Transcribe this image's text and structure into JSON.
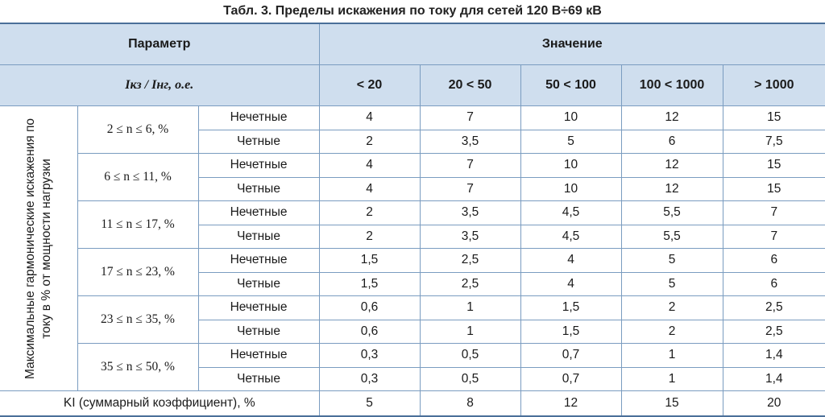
{
  "caption": "Табл. 3. Пределы искажения по току для сетей 120 В÷69 кВ",
  "header": {
    "param": "Параметр",
    "value": "Значение",
    "ratio_label": "Iкз / Iнг, о.е.",
    "ranges": [
      "< 20",
      "20 < 50",
      "50 < 100",
      "100 < 1000",
      "> 1000"
    ]
  },
  "side_label": "Максимальные гармонические искажения по току в % от мощности нагрузки",
  "groups": [
    {
      "label": "2 ≤ n ≤ 6, %",
      "rows": [
        {
          "type": "Нечетные",
          "values": [
            "4",
            "7",
            "10",
            "12",
            "15"
          ]
        },
        {
          "type": "Четные",
          "values": [
            "2",
            "3,5",
            "5",
            "6",
            "7,5"
          ]
        }
      ]
    },
    {
      "label": "6 ≤ n ≤ 11, %",
      "rows": [
        {
          "type": "Нечетные",
          "values": [
            "4",
            "7",
            "10",
            "12",
            "15"
          ]
        },
        {
          "type": "Четные",
          "values": [
            "4",
            "7",
            "10",
            "12",
            "15"
          ]
        }
      ]
    },
    {
      "label": "11 ≤ n ≤ 17, %",
      "rows": [
        {
          "type": "Нечетные",
          "values": [
            "2",
            "3,5",
            "4,5",
            "5,5",
            "7"
          ]
        },
        {
          "type": "Четные",
          "values": [
            "2",
            "3,5",
            "4,5",
            "5,5",
            "7"
          ]
        }
      ]
    },
    {
      "label": "17 ≤ n ≤ 23, %",
      "rows": [
        {
          "type": "Нечетные",
          "values": [
            "1,5",
            "2,5",
            "4",
            "5",
            "6"
          ]
        },
        {
          "type": "Четные",
          "values": [
            "1,5",
            "2,5",
            "4",
            "5",
            "6"
          ]
        }
      ]
    },
    {
      "label": "23 ≤ n ≤ 35, %",
      "rows": [
        {
          "type": "Нечетные",
          "values": [
            "0,6",
            "1",
            "1,5",
            "2",
            "2,5"
          ]
        },
        {
          "type": "Четные",
          "values": [
            "0,6",
            "1",
            "1,5",
            "2",
            "2,5"
          ]
        }
      ]
    },
    {
      "label": "35 ≤ n ≤ 50, %",
      "rows": [
        {
          "type": "Нечетные",
          "values": [
            "0,3",
            "0,5",
            "0,7",
            "1",
            "1,4"
          ]
        },
        {
          "type": "Четные",
          "values": [
            "0,3",
            "0,5",
            "0,7",
            "1",
            "1,4"
          ]
        }
      ]
    }
  ],
  "total": {
    "label": "KI (суммарный коэффициент), %",
    "values": [
      "5",
      "8",
      "12",
      "15",
      "20"
    ]
  },
  "colors": {
    "header_bg": "#cfdeee",
    "border": "#7a9cc0",
    "rule": "#4a6f99"
  }
}
